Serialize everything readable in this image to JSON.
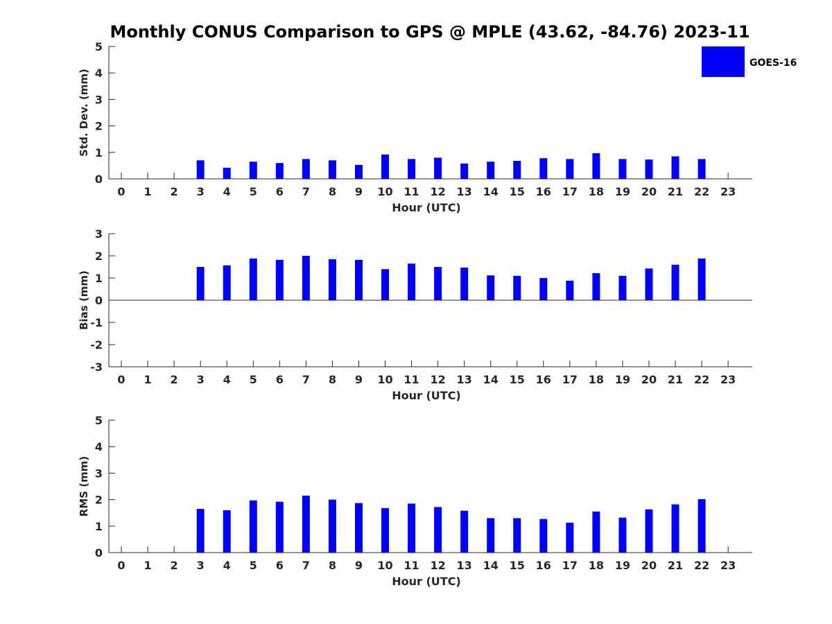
{
  "title": "Monthly CONUS Comparison to GPS @ MPLE (43.62, -84.76) 2023-11",
  "legend": {
    "label": "GOES-16",
    "color": "#0000ff"
  },
  "chart_data": [
    {
      "type": "bar",
      "name": "std-dev",
      "ylabel": "Std. Dev. (mm)",
      "xlabel": "Hour (UTC)",
      "ylim": [
        0,
        5
      ],
      "yticks": [
        "0",
        "1",
        "2",
        "3",
        "4",
        "5"
      ],
      "categories": [
        "0",
        "1",
        "2",
        "3",
        "4",
        "5",
        "6",
        "7",
        "8",
        "9",
        "10",
        "11",
        "12",
        "13",
        "14",
        "15",
        "16",
        "17",
        "18",
        "19",
        "20",
        "21",
        "22",
        "23"
      ],
      "values": [
        null,
        null,
        null,
        0.7,
        0.42,
        0.65,
        0.6,
        0.75,
        0.7,
        0.53,
        0.92,
        0.75,
        0.8,
        0.58,
        0.65,
        0.68,
        0.78,
        0.75,
        0.97,
        0.75,
        0.73,
        0.85,
        0.75,
        null
      ],
      "color": "#0000ff"
    },
    {
      "type": "bar",
      "name": "bias",
      "ylabel": "Bias (mm)",
      "xlabel": "Hour (UTC)",
      "ylim": [
        -3,
        3
      ],
      "yticks": [
        "-3",
        "-2",
        "-1",
        "0",
        "1",
        "2",
        "3"
      ],
      "categories": [
        "0",
        "1",
        "2",
        "3",
        "4",
        "5",
        "6",
        "7",
        "8",
        "9",
        "10",
        "11",
        "12",
        "13",
        "14",
        "15",
        "16",
        "17",
        "18",
        "19",
        "20",
        "21",
        "22",
        "23"
      ],
      "values": [
        null,
        null,
        null,
        1.5,
        1.57,
        1.88,
        1.82,
        2.0,
        1.85,
        1.82,
        1.4,
        1.65,
        1.5,
        1.47,
        1.12,
        1.1,
        1.0,
        0.88,
        1.22,
        1.1,
        1.43,
        1.6,
        1.88,
        null
      ],
      "color": "#0000ff"
    },
    {
      "type": "bar",
      "name": "rms",
      "ylabel": "RMS (mm)",
      "xlabel": "Hour (UTC)",
      "ylim": [
        0,
        5
      ],
      "yticks": [
        "0",
        "1",
        "2",
        "3",
        "4",
        "5"
      ],
      "categories": [
        "0",
        "1",
        "2",
        "3",
        "4",
        "5",
        "6",
        "7",
        "8",
        "9",
        "10",
        "11",
        "12",
        "13",
        "14",
        "15",
        "16",
        "17",
        "18",
        "19",
        "20",
        "21",
        "22",
        "23"
      ],
      "values": [
        null,
        null,
        null,
        1.65,
        1.6,
        1.97,
        1.92,
        2.15,
        2.0,
        1.87,
        1.68,
        1.85,
        1.72,
        1.58,
        1.3,
        1.3,
        1.27,
        1.13,
        1.55,
        1.32,
        1.63,
        1.82,
        2.02,
        null
      ],
      "color": "#0000ff"
    }
  ]
}
